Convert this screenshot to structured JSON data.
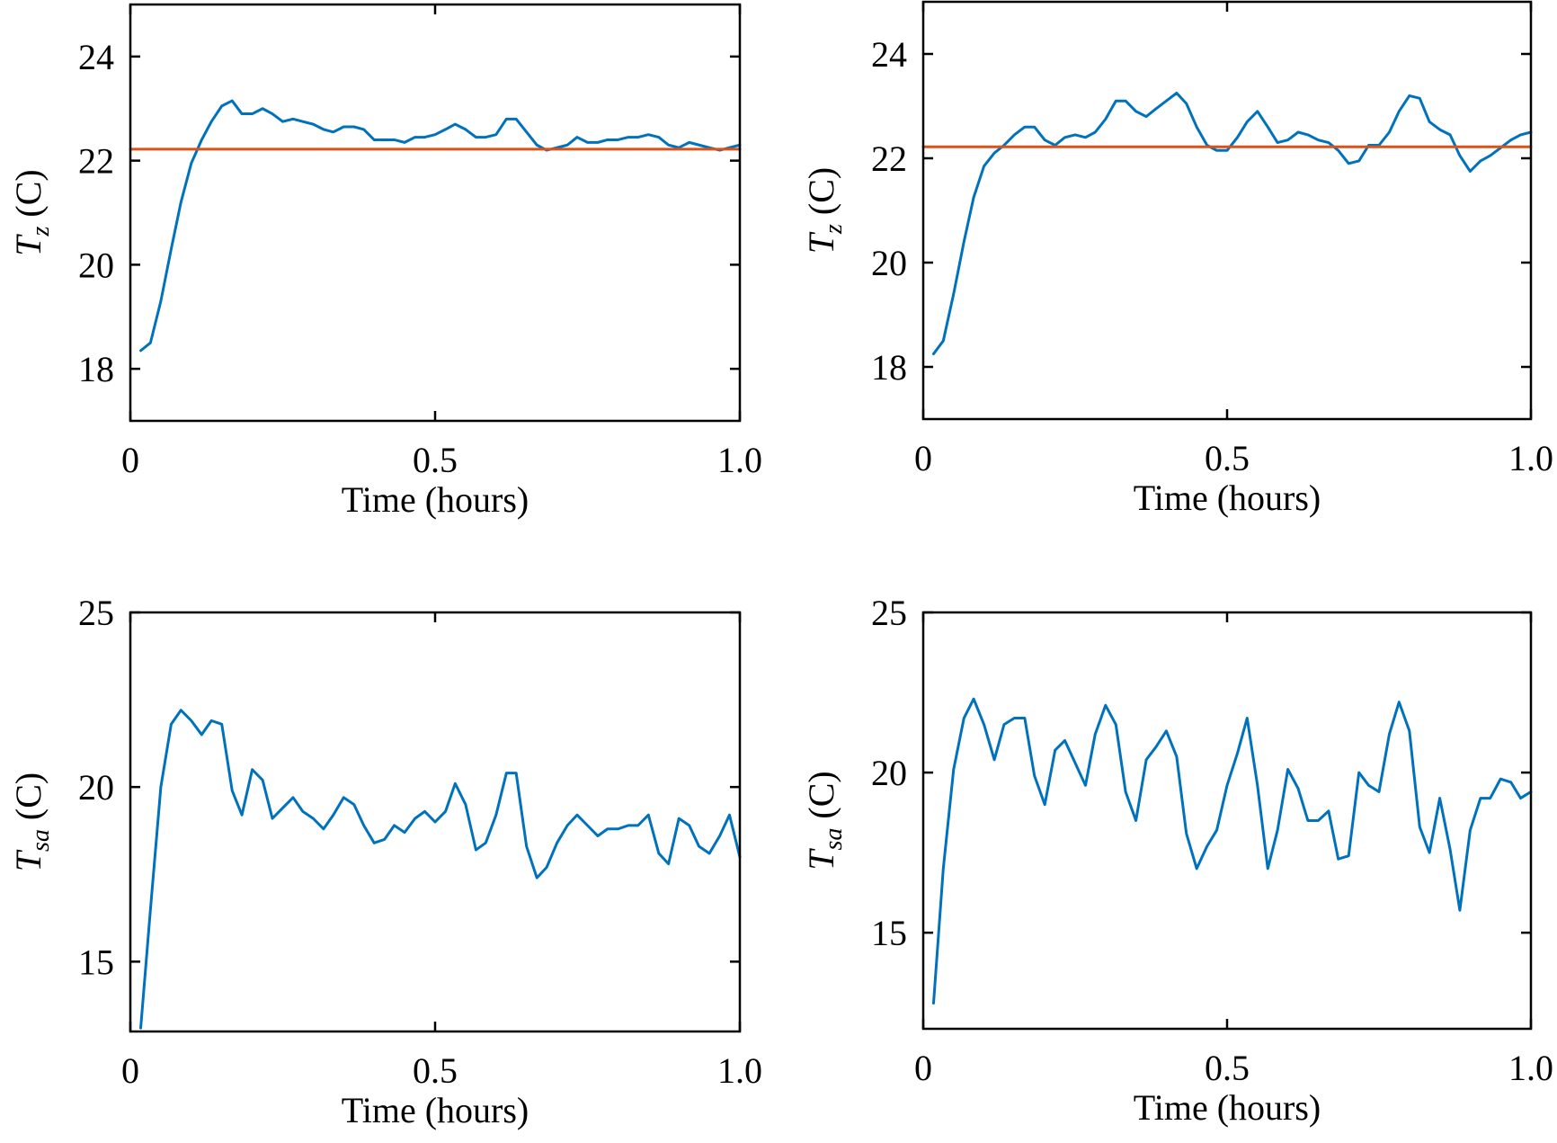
{
  "colors": {
    "series": "#0072BD",
    "reference": "#D95319",
    "axis": "#000000",
    "background": "#ffffff"
  },
  "chart_data": [
    {
      "type": "line",
      "position": "top-left",
      "xlabel": "Time (hours)",
      "ylabel": {
        "symbol": "T",
        "subscript": "z",
        "unit": " (C)"
      },
      "xlim": [
        0,
        1.0
      ],
      "ylim": [
        17,
        25
      ],
      "xticks": [
        0,
        0.5,
        1.0
      ],
      "xtick_labels": [
        "0",
        "0.5",
        "1.0"
      ],
      "yticks": [
        18,
        20,
        22,
        24
      ],
      "ytick_labels": [
        "18",
        "20",
        "22",
        "24"
      ],
      "grid": false,
      "series": [
        {
          "role": "measured",
          "x": [
            0.017,
            0.033,
            0.05,
            0.067,
            0.083,
            0.1,
            0.117,
            0.133,
            0.15,
            0.167,
            0.183,
            0.2,
            0.217,
            0.233,
            0.25,
            0.267,
            0.283,
            0.3,
            0.317,
            0.333,
            0.35,
            0.367,
            0.383,
            0.4,
            0.417,
            0.433,
            0.45,
            0.467,
            0.483,
            0.5,
            0.517,
            0.533,
            0.55,
            0.567,
            0.583,
            0.6,
            0.617,
            0.633,
            0.65,
            0.667,
            0.683,
            0.7,
            0.717,
            0.733,
            0.75,
            0.767,
            0.783,
            0.8,
            0.817,
            0.833,
            0.85,
            0.867,
            0.883,
            0.9,
            0.917,
            0.933,
            0.95,
            0.967,
            0.983,
            1.0
          ],
          "y": [
            18.35,
            18.5,
            19.3,
            20.3,
            21.2,
            21.95,
            22.4,
            22.75,
            23.05,
            23.15,
            22.9,
            22.9,
            23.0,
            22.9,
            22.75,
            22.8,
            22.75,
            22.7,
            22.6,
            22.55,
            22.65,
            22.65,
            22.6,
            22.4,
            22.4,
            22.4,
            22.35,
            22.45,
            22.45,
            22.5,
            22.6,
            22.7,
            22.6,
            22.45,
            22.45,
            22.5,
            22.8,
            22.8,
            22.55,
            22.3,
            22.2,
            22.25,
            22.3,
            22.45,
            22.35,
            22.35,
            22.4,
            22.4,
            22.45,
            22.45,
            22.5,
            22.45,
            22.3,
            22.25,
            22.35,
            22.3,
            22.25,
            22.2,
            22.25,
            22.3
          ]
        },
        {
          "role": "setpoint",
          "x": [
            0,
            1.0
          ],
          "y": [
            22.22,
            22.22
          ]
        }
      ]
    },
    {
      "type": "line",
      "position": "top-right",
      "xlabel": "Time (hours)",
      "ylabel": {
        "symbol": "T",
        "subscript": "z",
        "unit": " (C)"
      },
      "xlim": [
        0,
        1.0
      ],
      "ylim": [
        17,
        25
      ],
      "xticks": [
        0,
        0.5,
        1.0
      ],
      "xtick_labels": [
        "0",
        "0.5",
        "1.0"
      ],
      "yticks": [
        18,
        20,
        22,
        24
      ],
      "ytick_labels": [
        "18",
        "20",
        "22",
        "24"
      ],
      "grid": false,
      "series": [
        {
          "role": "measured",
          "x": [
            0.017,
            0.033,
            0.05,
            0.067,
            0.083,
            0.1,
            0.117,
            0.133,
            0.15,
            0.167,
            0.183,
            0.2,
            0.217,
            0.233,
            0.25,
            0.267,
            0.283,
            0.3,
            0.317,
            0.333,
            0.35,
            0.367,
            0.383,
            0.4,
            0.417,
            0.433,
            0.45,
            0.467,
            0.483,
            0.5,
            0.517,
            0.533,
            0.55,
            0.567,
            0.583,
            0.6,
            0.617,
            0.633,
            0.65,
            0.667,
            0.683,
            0.7,
            0.717,
            0.733,
            0.75,
            0.767,
            0.783,
            0.8,
            0.817,
            0.833,
            0.85,
            0.867,
            0.883,
            0.9,
            0.917,
            0.933,
            0.95,
            0.967,
            0.983,
            1.0
          ],
          "y": [
            18.25,
            18.5,
            19.4,
            20.4,
            21.25,
            21.85,
            22.1,
            22.25,
            22.45,
            22.6,
            22.6,
            22.35,
            22.25,
            22.4,
            22.45,
            22.4,
            22.5,
            22.75,
            23.1,
            23.1,
            22.9,
            22.8,
            22.95,
            23.1,
            23.25,
            23.05,
            22.6,
            22.25,
            22.15,
            22.15,
            22.4,
            22.7,
            22.9,
            22.6,
            22.3,
            22.35,
            22.5,
            22.45,
            22.35,
            22.3,
            22.15,
            21.9,
            21.95,
            22.25,
            22.25,
            22.5,
            22.9,
            23.2,
            23.15,
            22.7,
            22.55,
            22.45,
            22.05,
            21.75,
            21.95,
            22.05,
            22.2,
            22.35,
            22.45,
            22.5
          ]
        },
        {
          "role": "setpoint",
          "x": [
            0,
            1.0
          ],
          "y": [
            22.22,
            22.22
          ]
        }
      ]
    },
    {
      "type": "line",
      "position": "bottom-left",
      "xlabel": "Time (hours)",
      "ylabel": {
        "symbol": "T",
        "subscript": "sa",
        "unit": " (C)"
      },
      "xlim": [
        0,
        1.0
      ],
      "ylim": [
        13,
        25
      ],
      "xticks": [
        0,
        0.5,
        1.0
      ],
      "xtick_labels": [
        "0",
        "0.5",
        "1.0"
      ],
      "yticks": [
        15,
        20,
        25
      ],
      "ytick_labels": [
        "15",
        "20",
        "25"
      ],
      "grid": false,
      "series": [
        {
          "role": "measured",
          "x": [
            0.017,
            0.033,
            0.05,
            0.067,
            0.083,
            0.1,
            0.117,
            0.133,
            0.15,
            0.167,
            0.183,
            0.2,
            0.217,
            0.233,
            0.25,
            0.267,
            0.283,
            0.3,
            0.317,
            0.333,
            0.35,
            0.367,
            0.383,
            0.4,
            0.417,
            0.433,
            0.45,
            0.467,
            0.483,
            0.5,
            0.517,
            0.533,
            0.55,
            0.567,
            0.583,
            0.6,
            0.617,
            0.633,
            0.65,
            0.667,
            0.683,
            0.7,
            0.717,
            0.733,
            0.75,
            0.767,
            0.783,
            0.8,
            0.817,
            0.833,
            0.85,
            0.867,
            0.883,
            0.9,
            0.917,
            0.933,
            0.95,
            0.967,
            0.983,
            1.0
          ],
          "y": [
            13.1,
            16.5,
            20.0,
            21.8,
            22.2,
            21.9,
            21.5,
            21.9,
            21.8,
            19.9,
            19.2,
            20.5,
            20.2,
            19.1,
            19.4,
            19.7,
            19.3,
            19.1,
            18.8,
            19.2,
            19.7,
            19.5,
            18.9,
            18.4,
            18.5,
            18.9,
            18.7,
            19.1,
            19.3,
            19.0,
            19.3,
            20.1,
            19.5,
            18.2,
            18.4,
            19.2,
            20.4,
            20.4,
            18.3,
            17.4,
            17.7,
            18.4,
            18.9,
            19.2,
            18.9,
            18.6,
            18.8,
            18.8,
            18.9,
            18.9,
            19.2,
            18.1,
            17.8,
            19.1,
            18.9,
            18.3,
            18.1,
            18.6,
            19.2,
            18.0
          ]
        }
      ]
    },
    {
      "type": "line",
      "position": "bottom-right",
      "xlabel": "Time (hours)",
      "ylabel": {
        "symbol": "T",
        "subscript": "sa",
        "unit": " (C)"
      },
      "xlim": [
        0,
        1.0
      ],
      "ylim": [
        12,
        25
      ],
      "xticks": [
        0,
        0.5,
        1.0
      ],
      "xtick_labels": [
        "0",
        "0.5",
        "1.0"
      ],
      "yticks": [
        15,
        20,
        25
      ],
      "ytick_labels": [
        "15",
        "20",
        "25"
      ],
      "grid": false,
      "series": [
        {
          "role": "measured",
          "x": [
            0.017,
            0.033,
            0.05,
            0.067,
            0.083,
            0.1,
            0.117,
            0.133,
            0.15,
            0.167,
            0.183,
            0.2,
            0.217,
            0.233,
            0.25,
            0.267,
            0.283,
            0.3,
            0.317,
            0.333,
            0.35,
            0.367,
            0.383,
            0.4,
            0.417,
            0.433,
            0.45,
            0.467,
            0.483,
            0.5,
            0.517,
            0.533,
            0.55,
            0.567,
            0.583,
            0.6,
            0.617,
            0.633,
            0.65,
            0.667,
            0.683,
            0.7,
            0.717,
            0.733,
            0.75,
            0.767,
            0.783,
            0.8,
            0.817,
            0.833,
            0.85,
            0.867,
            0.883,
            0.9,
            0.917,
            0.933,
            0.95,
            0.967,
            0.983,
            1.0
          ],
          "y": [
            12.8,
            17.0,
            20.1,
            21.7,
            22.3,
            21.5,
            20.4,
            21.5,
            21.7,
            21.7,
            19.9,
            19.0,
            20.7,
            21.0,
            20.3,
            19.6,
            21.2,
            22.1,
            21.5,
            19.4,
            18.5,
            20.4,
            20.8,
            21.3,
            20.5,
            18.1,
            17.0,
            17.7,
            18.2,
            19.6,
            20.6,
            21.7,
            19.6,
            17.0,
            18.2,
            20.1,
            19.5,
            18.5,
            18.5,
            18.8,
            17.3,
            17.4,
            20.0,
            19.6,
            19.4,
            21.2,
            22.2,
            21.3,
            18.3,
            17.5,
            19.2,
            17.6,
            15.7,
            18.2,
            19.2,
            19.2,
            19.8,
            19.7,
            19.2,
            19.4
          ]
        }
      ]
    }
  ]
}
